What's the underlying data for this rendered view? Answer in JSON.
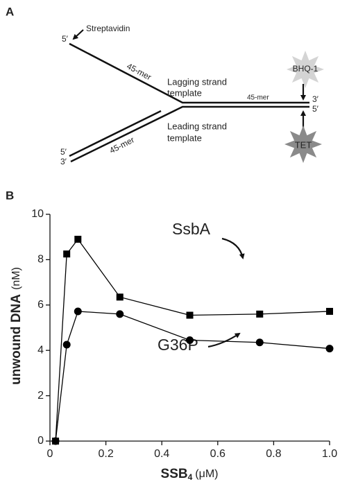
{
  "panel_a": {
    "label": "A",
    "five_prime_top": "5′",
    "streptavidin": "Streptavidin",
    "lagging_length": "45-mer",
    "lagging_line1": "Lagging strand",
    "lagging_line2": "template",
    "duplex_length": "45-mer",
    "quencher": "BHQ-1",
    "three_prime_right": "3′",
    "five_prime_right": "5′",
    "fluorophore": "TET",
    "five_prime_bottom": "5′",
    "three_prime_bottom": "3′",
    "leading_length": "45-mer",
    "leading_line1": "Leading strand",
    "leading_line2": "template"
  },
  "chart_data": {
    "type": "line",
    "panel_label": "B",
    "x_label": {
      "text": "SSB",
      "subscript": "4",
      "unit": "(μM)"
    },
    "y_label": {
      "text": "unwound DNA",
      "unit": "(nM)"
    },
    "x": [
      0.02,
      0.06,
      0.1,
      0.25,
      0.5,
      0.75,
      1.0
    ],
    "series": [
      {
        "name": "SsbA",
        "color": "#000000",
        "marker": "square",
        "values": [
          0,
          8.25,
          8.9,
          6.35,
          5.55,
          5.6,
          5.72
        ]
      },
      {
        "name": "G36P",
        "color": "#000000",
        "marker": "circle",
        "values": [
          0,
          4.25,
          5.72,
          5.6,
          4.45,
          4.35,
          4.08
        ]
      }
    ],
    "xlim": [
      0,
      1
    ],
    "ylim": [
      0,
      10
    ],
    "xticks": [
      0,
      0.2,
      0.4,
      0.6,
      0.8,
      {
        "value": 1,
        "label": "1.0"
      }
    ],
    "yticks": [
      0,
      2,
      4,
      6,
      8,
      10
    ],
    "grid": false
  }
}
